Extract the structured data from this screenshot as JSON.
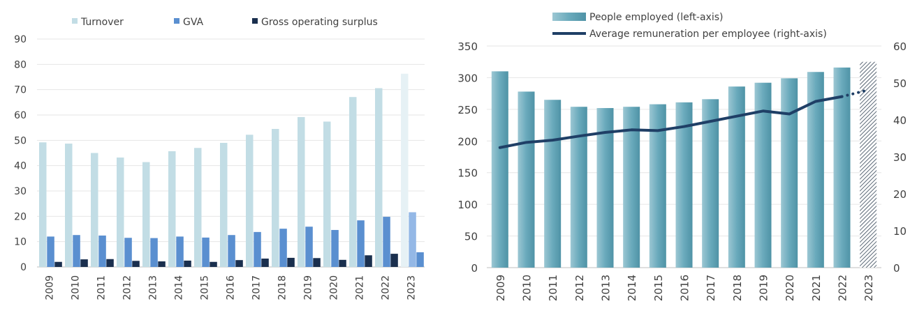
{
  "chart_data": [
    {
      "type": "bar",
      "title": "",
      "xlabel": "",
      "ylabel": "",
      "ylim": [
        0,
        90
      ],
      "yticks": [
        0,
        10,
        20,
        30,
        40,
        50,
        60,
        70,
        80,
        90
      ],
      "grid": true,
      "legend_position": "top",
      "categories": [
        "2009",
        "2010",
        "2011",
        "2012",
        "2013",
        "2014",
        "2015",
        "2016",
        "2017",
        "2018",
        "2019",
        "2020",
        "2021",
        "2022",
        "2023"
      ],
      "series": [
        {
          "name": "Turnover",
          "color": "#c2dde5",
          "projection_color": "#e6f1f5",
          "values": [
            49.2,
            48.7,
            45.0,
            43.2,
            41.4,
            45.7,
            47.0,
            49.0,
            52.2,
            54.5,
            59.2,
            57.4,
            67.1,
            70.6,
            76.3
          ]
        },
        {
          "name": "GVA",
          "color": "#5a8fd0",
          "projection_color": "#94b8e6",
          "values": [
            12.0,
            12.6,
            12.4,
            11.5,
            11.4,
            12.0,
            11.6,
            12.6,
            13.8,
            15.1,
            15.9,
            14.6,
            18.4,
            19.8,
            21.6
          ]
        },
        {
          "name": "Gross operating surplus",
          "color": "#1a2f4e",
          "projection_color": "#5a8fd0",
          "values": [
            2.0,
            3.0,
            3.1,
            2.4,
            2.2,
            2.5,
            2.0,
            2.7,
            3.3,
            3.6,
            3.5,
            2.8,
            4.6,
            5.2,
            5.8
          ]
        }
      ]
    },
    {
      "type": "bar+line",
      "title": "",
      "xlabel": "",
      "ylabel_left": "",
      "ylabel_right": "",
      "ylim_left": [
        0,
        350
      ],
      "yticks_left": [
        0,
        50,
        100,
        150,
        200,
        250,
        300,
        350
      ],
      "ylim_right": [
        0,
        60
      ],
      "yticks_right": [
        0,
        10,
        20,
        30,
        40,
        50,
        60
      ],
      "grid": true,
      "legend_position": "top",
      "categories": [
        "2009",
        "2010",
        "2011",
        "2012",
        "2013",
        "2014",
        "2015",
        "2016",
        "2017",
        "2018",
        "2019",
        "2020",
        "2021",
        "2022",
        "2023"
      ],
      "bar_series": {
        "name": "People employed (left-axis)",
        "color": "#6aaabc",
        "values": [
          310,
          278,
          265,
          254,
          252,
          254,
          258,
          261,
          266,
          286,
          292,
          299,
          309,
          316,
          325
        ],
        "projected_from_index": 14
      },
      "line_series": {
        "name": "Average remuneration per employee (right-axis)",
        "color": "#1f3f66",
        "values": [
          32.5,
          33.9,
          34.5,
          35.6,
          36.6,
          37.3,
          37.1,
          38.2,
          39.6,
          41.0,
          42.4,
          41.6,
          45.0,
          46.3,
          48.1
        ],
        "dotted_from_index": 13
      }
    }
  ]
}
